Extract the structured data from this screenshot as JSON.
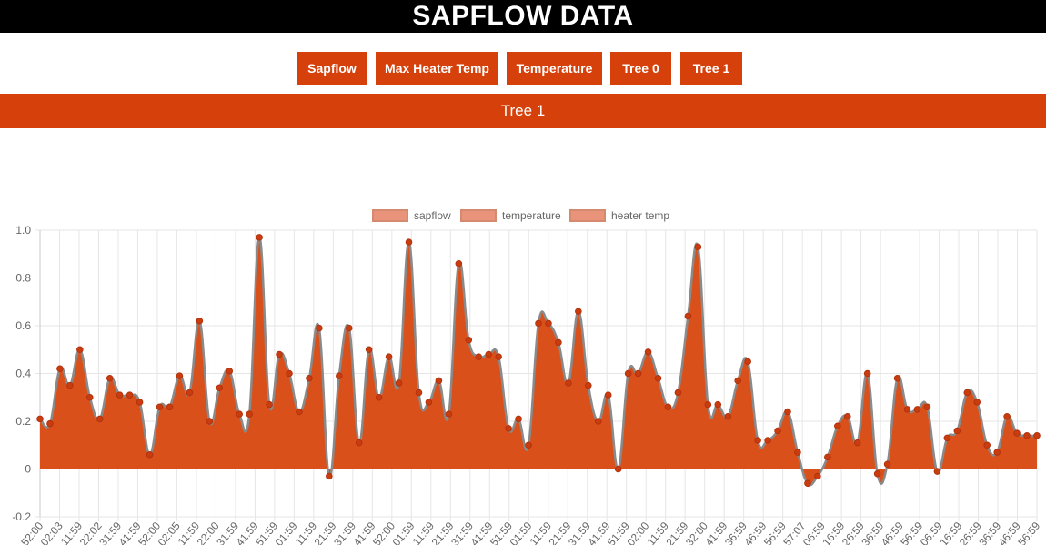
{
  "header": {
    "title": "SAPFLOW DATA"
  },
  "nav": {
    "buttons": [
      {
        "label": "Sapflow"
      },
      {
        "label": "Max Heater Temp"
      },
      {
        "label": "Temperature"
      },
      {
        "label": "Tree 0"
      },
      {
        "label": "Tree 1"
      }
    ]
  },
  "banner": {
    "label": "Tree 1"
  },
  "colors": {
    "accent": "#d6400b",
    "area_fill": "#d9501b",
    "line": "#8a8a8a",
    "point": "#c93c10",
    "legend_box": "#e8937a",
    "legend_border": "#d48a6e",
    "grid": "#e6e6e6",
    "axis_text": "#666666"
  },
  "chart_data": {
    "type": "area",
    "legend": [
      "sapflow",
      "temperature",
      "heater temp"
    ],
    "legend_position": "top",
    "grid": true,
    "ylim": [
      -0.2,
      1.0
    ],
    "yticks": [
      "1.0",
      "0.8",
      "0.6",
      "0.4",
      "0.2",
      "0",
      "-0.2"
    ],
    "ytick_values": [
      1.0,
      0.8,
      0.6,
      0.4,
      0.2,
      0,
      -0.2
    ],
    "xtick_labels": [
      "52:00",
      "02:03",
      "11:59",
      "22:02",
      "31:59",
      "41:59",
      "52:00",
      "02:05",
      "11:59",
      "22:00",
      "31:59",
      "41:59",
      "51:59",
      "01:59",
      "11:59",
      "21:59",
      "31:59",
      "41:59",
      "52:00",
      "01:59",
      "11:59",
      "21:59",
      "31:59",
      "41:59",
      "51:59",
      "01:59",
      "11:59",
      "21:59",
      "31:59",
      "41:59",
      "51:59",
      "02:00",
      "11:59",
      "21:59",
      "32:00",
      "41:59",
      "36:59",
      "46:59",
      "56:59",
      "57:07",
      "06:59",
      "16:59",
      "26:59",
      "36:59",
      "46:59",
      "56:59",
      "06:59",
      "16:59",
      "26:59",
      "36:59",
      "46:59",
      "56:59"
    ],
    "series": [
      {
        "name": "sapflow",
        "values": [
          0.21,
          0.19,
          0.42,
          0.35,
          0.5,
          0.3,
          0.21,
          0.38,
          0.31,
          0.31,
          0.28,
          0.06,
          0.26,
          0.26,
          0.39,
          0.32,
          0.62,
          0.2,
          0.34,
          0.41,
          0.23,
          0.23,
          0.97,
          0.27,
          0.48,
          0.4,
          0.24,
          0.38,
          0.59,
          -0.03,
          0.39,
          0.59,
          0.11,
          0.5,
          0.3,
          0.47,
          0.36,
          0.95,
          0.32,
          0.28,
          0.37,
          0.23,
          0.86,
          0.54,
          0.47,
          0.48,
          0.47,
          0.17,
          0.21,
          0.1,
          0.61,
          0.61,
          0.53,
          0.36,
          0.66,
          0.35,
          0.2,
          0.31,
          0.0,
          0.4,
          0.4,
          0.49,
          0.38,
          0.26,
          0.32,
          0.64,
          0.93,
          0.27,
          0.27,
          0.22,
          0.37,
          0.45,
          0.12,
          0.12,
          0.16,
          0.24,
          0.07,
          -0.06,
          -0.03,
          0.05,
          0.18,
          0.22,
          0.11,
          0.4,
          -0.02,
          0.02,
          0.38,
          0.25,
          0.25,
          0.26,
          -0.01,
          0.13,
          0.16,
          0.32,
          0.28,
          0.1,
          0.07,
          0.22,
          0.15,
          0.14,
          0.14
        ]
      }
    ]
  }
}
